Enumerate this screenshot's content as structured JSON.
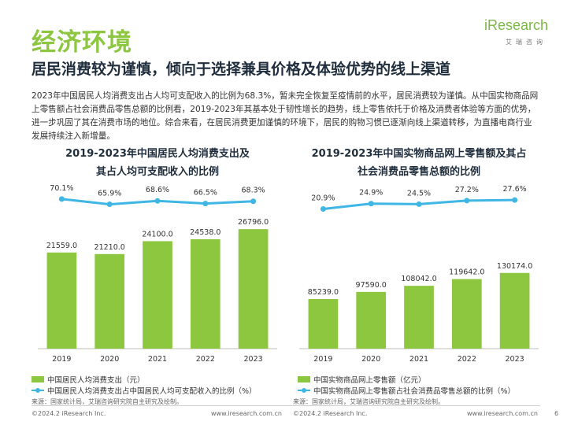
{
  "header": {
    "title": "经济环境",
    "subtitle": "居民消费较为谨慎，倾向于选择兼具价格及体验优势的线上渠道",
    "logo_text": "iResearch",
    "logo_sub": "艾瑞咨询"
  },
  "paragraph": "2023年中国居民人均消费支出占人均可支配收入的比例为68.3%，暂未完全恢复至疫情前的水平，居民消费较为谨慎。从中国实物商品网上零售额占社会消费品零售总额的比例看，2019-2023年其基本处于韧性增长的趋势，线上零售依托于价格及消费者体验等方面的优势，进一步巩固了其在消费市场的地位。综合来看，在居民消费更加谨慎的环境下，居民的购物习惯已逐渐向线上渠道转移，为直播电商行业发展持续注入新增量。",
  "colors": {
    "accent": "#8dc63f",
    "line": "#3fb6e4",
    "title": "#1f2d3d"
  },
  "chart_data": [
    {
      "type": "bar",
      "title_line1": "2019-2023年中国居民人均消费支出及",
      "title_line2": "其占人均可支配收入的比例",
      "categories": [
        "2019",
        "2020",
        "2021",
        "2022",
        "2023"
      ],
      "bar_series": {
        "name": "中国居民人均消费支出（元）",
        "values": [
          21559.0,
          21210.0,
          24100.0,
          24538.0,
          26796.0
        ],
        "labels": [
          "21559.0",
          "21210.0",
          "24100.0",
          "24538.0",
          "26796.0"
        ]
      },
      "line_series": {
        "name": "中国居民人均消费支出占中国居民人均可支配收入的比例（%）",
        "values": [
          70.1,
          65.9,
          68.6,
          66.5,
          68.3
        ],
        "labels": [
          "70.1%",
          "65.9%",
          "68.6%",
          "66.5%",
          "68.3%"
        ]
      },
      "bar_ylim": [
        0,
        30000
      ],
      "line_ylim": [
        40,
        75
      ],
      "source": "来源：国家统计局，艾瑞咨询研究院自主研究及绘制。"
    },
    {
      "type": "bar",
      "title_line1": "2019-2023年中国实物商品网上零售额及其占",
      "title_line2": "社会消费品零售总额的比例",
      "categories": [
        "2019",
        "2020",
        "2021",
        "2022",
        "2023"
      ],
      "bar_series": {
        "name": "中国实物商品网上零售额（亿元）",
        "values": [
          85239.0,
          97590.0,
          108042.0,
          119642.0,
          130174.0
        ],
        "labels": [
          "85239.0",
          "97590.0",
          "108042.0",
          "119642.0",
          "130174.0"
        ]
      },
      "line_series": {
        "name": "中国实物商品网上零售额占社会消费品零售总额的比例（%）",
        "values": [
          20.9,
          24.9,
          24.5,
          27.2,
          27.6
        ],
        "labels": [
          "20.9%",
          "24.9%",
          "24.5%",
          "27.2%",
          "27.6%"
        ]
      },
      "bar_ylim": [
        0,
        230000
      ],
      "line_ylim": [
        0,
        33
      ],
      "source": "来源：国家统计局，艾瑞咨询研究院自主研究及绘制。"
    }
  ],
  "footer": {
    "left_copyright": "©2024.2 iResearch Inc.",
    "left_url": "www.iresearch.com.cn",
    "right_copyright": "©2024.2 iResearch Inc.",
    "right_url": "www.iresearch.com.cn",
    "page_number": "6"
  }
}
